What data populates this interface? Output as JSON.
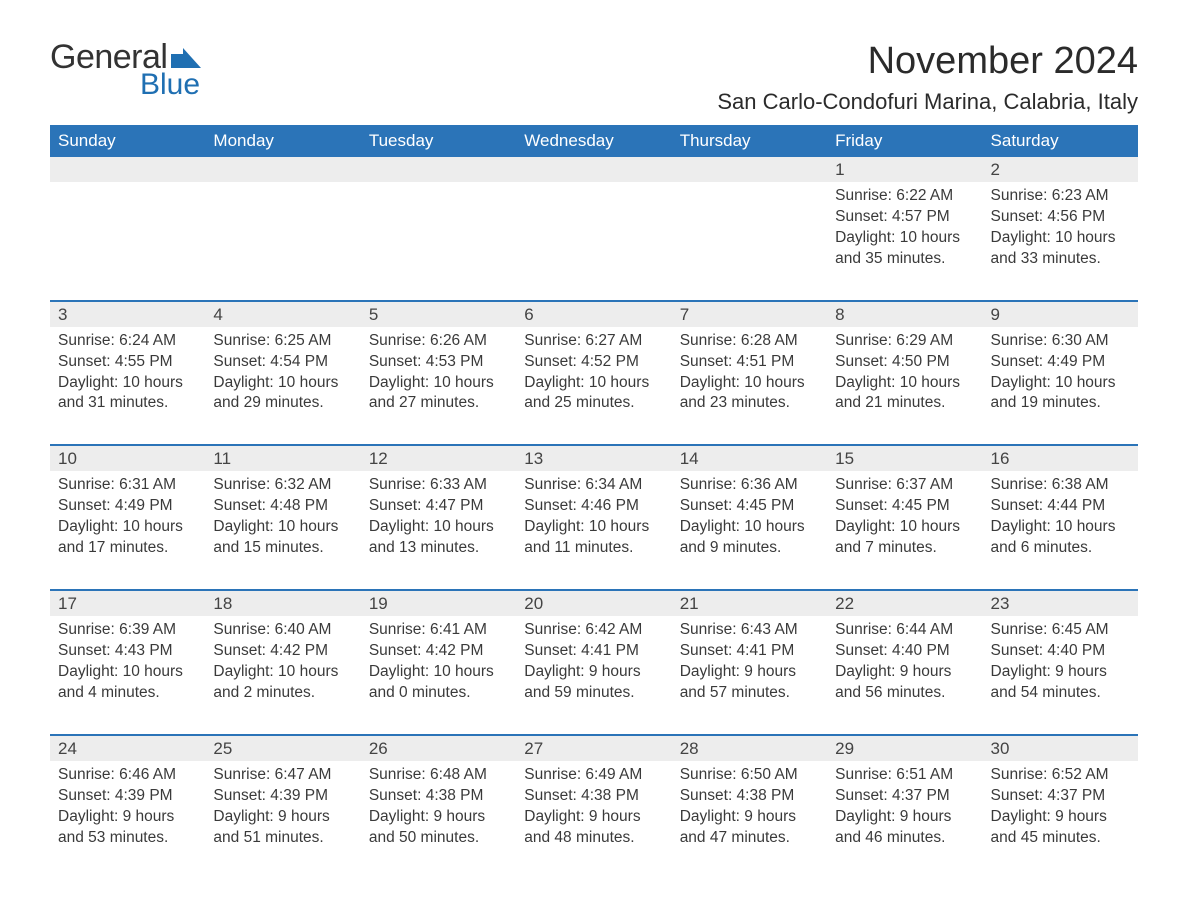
{
  "logo": {
    "word1": "General",
    "word2": "Blue",
    "flag_color": "#1f6fb2"
  },
  "title": "November 2024",
  "location": "San Carlo-Condofuri Marina, Calabria, Italy",
  "colors": {
    "header_bg": "#2b74b8",
    "header_text": "#ffffff",
    "daynum_bg": "#ededed",
    "text": "#3a3a3a",
    "rule": "#2b74b8",
    "page_bg": "#ffffff"
  },
  "fonts": {
    "body_pt": 15.5,
    "daynum_pt": 17,
    "header_pt": 17,
    "title_pt": 38,
    "location_pt": 22
  },
  "day_labels": [
    "Sunday",
    "Monday",
    "Tuesday",
    "Wednesday",
    "Thursday",
    "Friday",
    "Saturday"
  ],
  "labels": {
    "sunrise": "Sunrise:",
    "sunset": "Sunset:",
    "daylight": "Daylight:"
  },
  "weeks": [
    [
      null,
      null,
      null,
      null,
      null,
      {
        "n": "1",
        "sr": "6:22 AM",
        "ss": "4:57 PM",
        "dl": "10 hours and 35 minutes."
      },
      {
        "n": "2",
        "sr": "6:23 AM",
        "ss": "4:56 PM",
        "dl": "10 hours and 33 minutes."
      }
    ],
    [
      {
        "n": "3",
        "sr": "6:24 AM",
        "ss": "4:55 PM",
        "dl": "10 hours and 31 minutes."
      },
      {
        "n": "4",
        "sr": "6:25 AM",
        "ss": "4:54 PM",
        "dl": "10 hours and 29 minutes."
      },
      {
        "n": "5",
        "sr": "6:26 AM",
        "ss": "4:53 PM",
        "dl": "10 hours and 27 minutes."
      },
      {
        "n": "6",
        "sr": "6:27 AM",
        "ss": "4:52 PM",
        "dl": "10 hours and 25 minutes."
      },
      {
        "n": "7",
        "sr": "6:28 AM",
        "ss": "4:51 PM",
        "dl": "10 hours and 23 minutes."
      },
      {
        "n": "8",
        "sr": "6:29 AM",
        "ss": "4:50 PM",
        "dl": "10 hours and 21 minutes."
      },
      {
        "n": "9",
        "sr": "6:30 AM",
        "ss": "4:49 PM",
        "dl": "10 hours and 19 minutes."
      }
    ],
    [
      {
        "n": "10",
        "sr": "6:31 AM",
        "ss": "4:49 PM",
        "dl": "10 hours and 17 minutes."
      },
      {
        "n": "11",
        "sr": "6:32 AM",
        "ss": "4:48 PM",
        "dl": "10 hours and 15 minutes."
      },
      {
        "n": "12",
        "sr": "6:33 AM",
        "ss": "4:47 PM",
        "dl": "10 hours and 13 minutes."
      },
      {
        "n": "13",
        "sr": "6:34 AM",
        "ss": "4:46 PM",
        "dl": "10 hours and 11 minutes."
      },
      {
        "n": "14",
        "sr": "6:36 AM",
        "ss": "4:45 PM",
        "dl": "10 hours and 9 minutes."
      },
      {
        "n": "15",
        "sr": "6:37 AM",
        "ss": "4:45 PM",
        "dl": "10 hours and 7 minutes."
      },
      {
        "n": "16",
        "sr": "6:38 AM",
        "ss": "4:44 PM",
        "dl": "10 hours and 6 minutes."
      }
    ],
    [
      {
        "n": "17",
        "sr": "6:39 AM",
        "ss": "4:43 PM",
        "dl": "10 hours and 4 minutes."
      },
      {
        "n": "18",
        "sr": "6:40 AM",
        "ss": "4:42 PM",
        "dl": "10 hours and 2 minutes."
      },
      {
        "n": "19",
        "sr": "6:41 AM",
        "ss": "4:42 PM",
        "dl": "10 hours and 0 minutes."
      },
      {
        "n": "20",
        "sr": "6:42 AM",
        "ss": "4:41 PM",
        "dl": "9 hours and 59 minutes."
      },
      {
        "n": "21",
        "sr": "6:43 AM",
        "ss": "4:41 PM",
        "dl": "9 hours and 57 minutes."
      },
      {
        "n": "22",
        "sr": "6:44 AM",
        "ss": "4:40 PM",
        "dl": "9 hours and 56 minutes."
      },
      {
        "n": "23",
        "sr": "6:45 AM",
        "ss": "4:40 PM",
        "dl": "9 hours and 54 minutes."
      }
    ],
    [
      {
        "n": "24",
        "sr": "6:46 AM",
        "ss": "4:39 PM",
        "dl": "9 hours and 53 minutes."
      },
      {
        "n": "25",
        "sr": "6:47 AM",
        "ss": "4:39 PM",
        "dl": "9 hours and 51 minutes."
      },
      {
        "n": "26",
        "sr": "6:48 AM",
        "ss": "4:38 PM",
        "dl": "9 hours and 50 minutes."
      },
      {
        "n": "27",
        "sr": "6:49 AM",
        "ss": "4:38 PM",
        "dl": "9 hours and 48 minutes."
      },
      {
        "n": "28",
        "sr": "6:50 AM",
        "ss": "4:38 PM",
        "dl": "9 hours and 47 minutes."
      },
      {
        "n": "29",
        "sr": "6:51 AM",
        "ss": "4:37 PM",
        "dl": "9 hours and 46 minutes."
      },
      {
        "n": "30",
        "sr": "6:52 AM",
        "ss": "4:37 PM",
        "dl": "9 hours and 45 minutes."
      }
    ]
  ]
}
